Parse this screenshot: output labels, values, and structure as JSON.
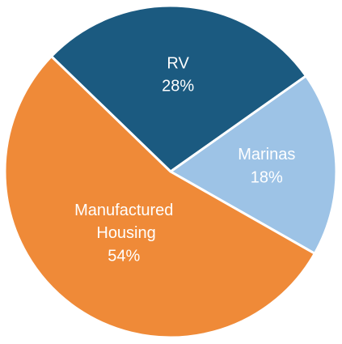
{
  "chart_data": {
    "type": "pie",
    "categories": [
      "RV",
      "Marinas",
      "Manufactured Housing"
    ],
    "values": [
      28,
      18,
      54
    ],
    "value_labels": [
      "28%",
      "18%",
      "54%"
    ],
    "colors": [
      "#1b5a80",
      "#9dc3e6",
      "#ef8a38"
    ]
  }
}
